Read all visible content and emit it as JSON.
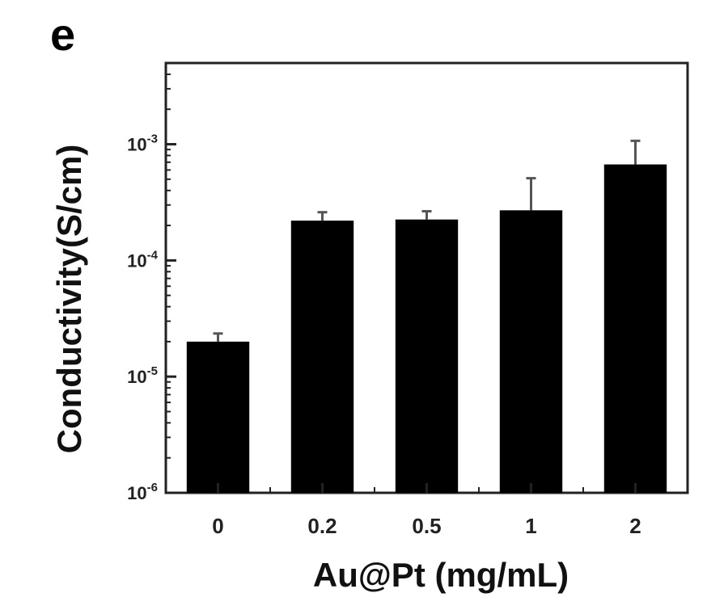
{
  "panel_label": "e",
  "chart_data": {
    "type": "bar",
    "log_scale_y": true,
    "xlabel": "Au@Pt (mg/mL)",
    "ylabel": "Conductivity(S/cm)",
    "categories": [
      "0",
      "0.2",
      "0.5",
      "1",
      "2"
    ],
    "values": [
      2e-05,
      0.00022,
      0.000225,
      0.00027,
      0.00067
    ],
    "error_plus": [
      3.5e-06,
      4e-05,
      4e-05,
      0.00024,
      0.0004
    ],
    "ylim": [
      1e-06,
      0.005
    ],
    "yticks": [
      {
        "base": "10",
        "exp": "-6",
        "value": 1e-06
      },
      {
        "base": "10",
        "exp": "-5",
        "value": 1e-05
      },
      {
        "base": "10",
        "exp": "-4",
        "value": 0.0001
      },
      {
        "base": "10",
        "exp": "-3",
        "value": 0.001
      }
    ],
    "bar_color": "#000000",
    "error_color": "#555555",
    "grid": false
  }
}
